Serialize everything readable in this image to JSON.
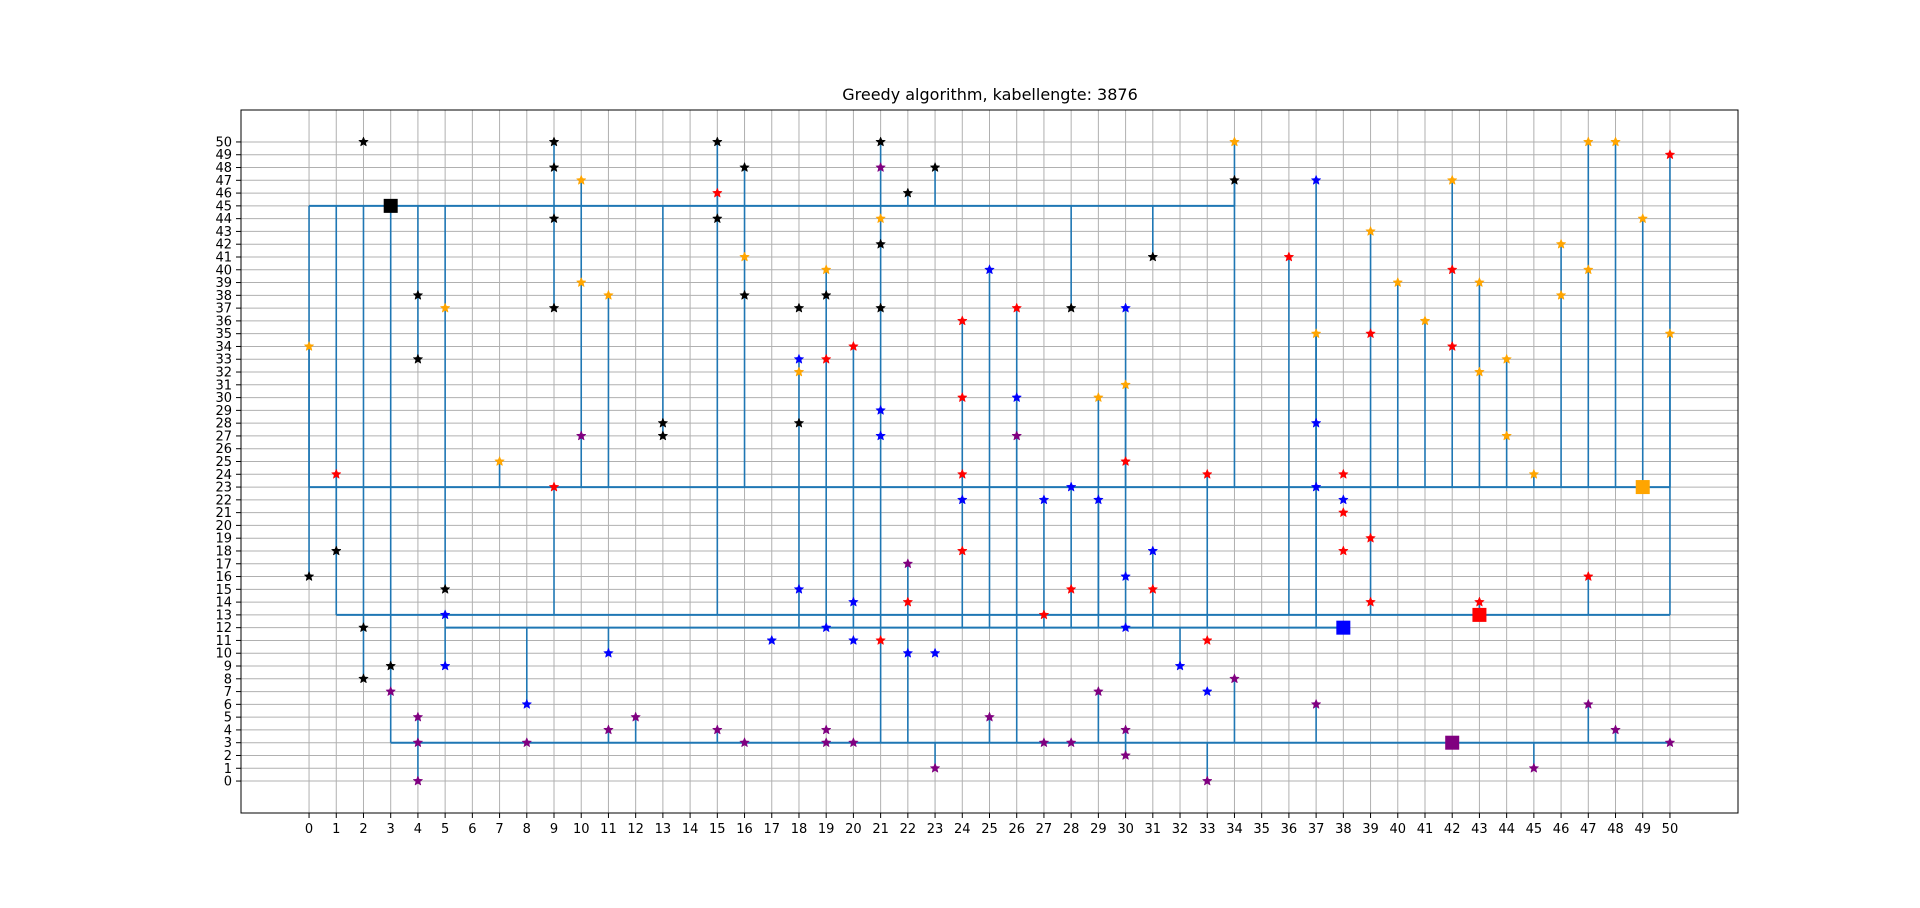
{
  "chart_data": {
    "type": "scatter",
    "title": "Greedy algorithm, kabellengte: 3876",
    "xlabel": "",
    "ylabel": "",
    "xlim": [
      -2.5,
      52.5
    ],
    "ylim": [
      -2.5,
      52.5
    ],
    "xticks": [
      0,
      1,
      2,
      3,
      4,
      5,
      6,
      7,
      8,
      9,
      10,
      11,
      12,
      13,
      14,
      15,
      16,
      17,
      18,
      19,
      20,
      21,
      22,
      23,
      24,
      25,
      26,
      27,
      28,
      29,
      30,
      31,
      32,
      33,
      34,
      35,
      36,
      37,
      38,
      39,
      40,
      41,
      42,
      43,
      44,
      45,
      46,
      47,
      48,
      49,
      50
    ],
    "yticks": [
      0,
      1,
      2,
      3,
      4,
      5,
      6,
      7,
      8,
      9,
      10,
      11,
      12,
      13,
      14,
      15,
      16,
      17,
      18,
      19,
      20,
      21,
      22,
      23,
      24,
      25,
      26,
      27,
      28,
      29,
      30,
      31,
      32,
      33,
      34,
      35,
      36,
      37,
      38,
      39,
      40,
      41,
      42,
      43,
      44,
      45,
      46,
      47,
      48,
      49,
      50
    ],
    "grid": true,
    "cable_color": "#1f77b4",
    "batteries": [
      {
        "color": "#000000",
        "x": 3,
        "y": 45
      },
      {
        "color": "#ffa500",
        "x": 49,
        "y": 23
      },
      {
        "color": "#0000ff",
        "x": 38,
        "y": 12
      },
      {
        "color": "#ff0000",
        "x": 43,
        "y": 13
      },
      {
        "color": "#800080",
        "x": 42,
        "y": 3
      }
    ],
    "houses": [
      {
        "color": "#000000",
        "points": [
          [
            0,
            16
          ],
          [
            1,
            18
          ],
          [
            2,
            50
          ],
          [
            2,
            12
          ],
          [
            2,
            8
          ],
          [
            3,
            9
          ],
          [
            4,
            38
          ],
          [
            4,
            33
          ],
          [
            5,
            15
          ],
          [
            9,
            50
          ],
          [
            9,
            48
          ],
          [
            9,
            44
          ],
          [
            9,
            37
          ],
          [
            13,
            28
          ],
          [
            13,
            27
          ],
          [
            15,
            50
          ],
          [
            15,
            44
          ],
          [
            16,
            48
          ],
          [
            16,
            38
          ],
          [
            18,
            37
          ],
          [
            18,
            28
          ],
          [
            19,
            38
          ],
          [
            21,
            50
          ],
          [
            21,
            42
          ],
          [
            21,
            37
          ],
          [
            22,
            46
          ],
          [
            23,
            48
          ],
          [
            28,
            37
          ],
          [
            31,
            41
          ],
          [
            34,
            47
          ]
        ]
      },
      {
        "color": "#ffa500",
        "points": [
          [
            0,
            34
          ],
          [
            5,
            37
          ],
          [
            7,
            25
          ],
          [
            10,
            47
          ],
          [
            10,
            39
          ],
          [
            11,
            38
          ],
          [
            16,
            41
          ],
          [
            18,
            32
          ],
          [
            19,
            40
          ],
          [
            21,
            44
          ],
          [
            29,
            30
          ],
          [
            30,
            31
          ],
          [
            34,
            50
          ],
          [
            37,
            35
          ],
          [
            39,
            43
          ],
          [
            40,
            39
          ],
          [
            41,
            36
          ],
          [
            42,
            47
          ],
          [
            43,
            39
          ],
          [
            43,
            32
          ],
          [
            44,
            33
          ],
          [
            44,
            27
          ],
          [
            45,
            24
          ],
          [
            46,
            42
          ],
          [
            46,
            38
          ],
          [
            47,
            50
          ],
          [
            47,
            40
          ],
          [
            48,
            50
          ],
          [
            49,
            44
          ],
          [
            50,
            35
          ]
        ]
      },
      {
        "color": "#0000ff",
        "points": [
          [
            5,
            13
          ],
          [
            5,
            9
          ],
          [
            8,
            6
          ],
          [
            11,
            10
          ],
          [
            17,
            11
          ],
          [
            18,
            33
          ],
          [
            18,
            15
          ],
          [
            19,
            12
          ],
          [
            20,
            14
          ],
          [
            20,
            11
          ],
          [
            21,
            29
          ],
          [
            21,
            27
          ],
          [
            22,
            10
          ],
          [
            23,
            10
          ],
          [
            24,
            22
          ],
          [
            25,
            40
          ],
          [
            26,
            30
          ],
          [
            27,
            22
          ],
          [
            28,
            23
          ],
          [
            29,
            22
          ],
          [
            30,
            37
          ],
          [
            30,
            16
          ],
          [
            30,
            12
          ],
          [
            31,
            18
          ],
          [
            32,
            9
          ],
          [
            33,
            7
          ],
          [
            37,
            47
          ],
          [
            37,
            28
          ],
          [
            37,
            23
          ],
          [
            38,
            22
          ]
        ]
      },
      {
        "color": "#ff0000",
        "points": [
          [
            1,
            24
          ],
          [
            9,
            23
          ],
          [
            15,
            46
          ],
          [
            19,
            33
          ],
          [
            20,
            34
          ],
          [
            21,
            11
          ],
          [
            22,
            14
          ],
          [
            24,
            36
          ],
          [
            24,
            30
          ],
          [
            24,
            24
          ],
          [
            24,
            18
          ],
          [
            26,
            37
          ],
          [
            27,
            13
          ],
          [
            28,
            15
          ],
          [
            30,
            25
          ],
          [
            31,
            15
          ],
          [
            33,
            24
          ],
          [
            33,
            11
          ],
          [
            36,
            41
          ],
          [
            38,
            24
          ],
          [
            38,
            21
          ],
          [
            38,
            18
          ],
          [
            39,
            35
          ],
          [
            39,
            19
          ],
          [
            39,
            14
          ],
          [
            42,
            40
          ],
          [
            42,
            34
          ],
          [
            43,
            14
          ],
          [
            47,
            16
          ],
          [
            50,
            49
          ]
        ]
      },
      {
        "color": "#800080",
        "points": [
          [
            3,
            7
          ],
          [
            4,
            5
          ],
          [
            4,
            3
          ],
          [
            4,
            0
          ],
          [
            8,
            3
          ],
          [
            10,
            27
          ],
          [
            11,
            4
          ],
          [
            12,
            5
          ],
          [
            15,
            4
          ],
          [
            16,
            3
          ],
          [
            19,
            4
          ],
          [
            19,
            3
          ],
          [
            20,
            3
          ],
          [
            21,
            48
          ],
          [
            22,
            17
          ],
          [
            23,
            1
          ],
          [
            25,
            5
          ],
          [
            26,
            27
          ],
          [
            27,
            3
          ],
          [
            28,
            3
          ],
          [
            29,
            7
          ],
          [
            30,
            4
          ],
          [
            30,
            2
          ],
          [
            33,
            0
          ],
          [
            34,
            8
          ],
          [
            37,
            6
          ],
          [
            45,
            1
          ],
          [
            47,
            6
          ],
          [
            48,
            4
          ],
          [
            50,
            3
          ]
        ]
      }
    ],
    "cables": [
      {
        "color": "#000000",
        "bus": [
          [
            0,
            45
          ],
          [
            34,
            45
          ]
        ],
        "drops": [
          [
            0,
            16
          ],
          [
            1,
            18
          ],
          [
            2,
            8
          ],
          [
            3,
            9
          ],
          [
            4,
            33
          ],
          [
            5,
            15
          ],
          [
            9,
            37
          ],
          [
            9,
            50
          ],
          [
            13,
            27
          ],
          [
            15,
            44
          ],
          [
            15,
            50
          ],
          [
            21,
            37
          ],
          [
            21,
            50
          ],
          [
            22,
            46
          ],
          [
            23,
            48
          ],
          [
            28,
            37
          ],
          [
            31,
            41
          ],
          [
            34,
            47
          ]
        ]
      },
      {
        "color": "#ffa500",
        "bus": [
          [
            0,
            23
          ],
          [
            50,
            23
          ]
        ],
        "drops": [
          [
            0,
            34
          ],
          [
            7,
            25
          ],
          [
            10,
            47
          ],
          [
            11,
            38
          ],
          [
            16,
            48
          ],
          [
            30,
            31
          ],
          [
            33,
            24
          ],
          [
            34,
            50
          ],
          [
            37,
            35
          ],
          [
            40,
            39
          ],
          [
            41,
            36
          ],
          [
            42,
            47
          ],
          [
            43,
            39
          ],
          [
            44,
            33
          ],
          [
            45,
            24
          ],
          [
            46,
            42
          ],
          [
            47,
            50
          ],
          [
            48,
            50
          ],
          [
            49,
            44
          ],
          [
            50,
            35
          ]
        ]
      },
      {
        "color": "#ff0000",
        "bus": [
          [
            1,
            13
          ],
          [
            50,
            13
          ]
        ],
        "drops": [
          [
            1,
            24
          ],
          [
            9,
            23
          ],
          [
            15,
            46
          ],
          [
            28,
            15
          ],
          [
            29,
            30
          ],
          [
            36,
            41
          ],
          [
            37,
            35
          ],
          [
            39,
            43
          ],
          [
            43,
            14
          ],
          [
            47,
            16
          ],
          [
            50,
            49
          ]
        ]
      },
      {
        "color": "#0000ff",
        "bus": [
          [
            5,
            12
          ],
          [
            38,
            12
          ]
        ],
        "drops": [
          [
            5,
            9
          ],
          [
            5,
            13
          ],
          [
            8,
            6
          ],
          [
            11,
            10
          ],
          [
            18,
            33
          ],
          [
            19,
            40
          ],
          [
            20,
            34
          ],
          [
            24,
            36
          ],
          [
            25,
            40
          ],
          [
            26,
            37
          ],
          [
            27,
            22
          ],
          [
            28,
            23
          ],
          [
            29,
            22
          ],
          [
            30,
            37
          ],
          [
            31,
            18
          ],
          [
            32,
            9
          ],
          [
            33,
            24
          ],
          [
            37,
            47
          ]
        ]
      },
      {
        "color": "#800080",
        "bus": [
          [
            3,
            3
          ],
          [
            50,
            3
          ]
        ],
        "drops": [
          [
            3,
            9
          ],
          [
            4,
            5
          ],
          [
            4,
            0
          ],
          [
            11,
            4
          ],
          [
            12,
            5
          ],
          [
            15,
            4
          ],
          [
            21,
            37
          ],
          [
            22,
            17
          ],
          [
            23,
            1
          ],
          [
            25,
            5
          ],
          [
            26,
            30
          ],
          [
            29,
            7
          ],
          [
            30,
            4
          ],
          [
            30,
            2
          ],
          [
            33,
            0
          ],
          [
            34,
            8
          ],
          [
            37,
            6
          ],
          [
            45,
            1
          ],
          [
            47,
            6
          ],
          [
            48,
            4
          ]
        ]
      }
    ]
  }
}
